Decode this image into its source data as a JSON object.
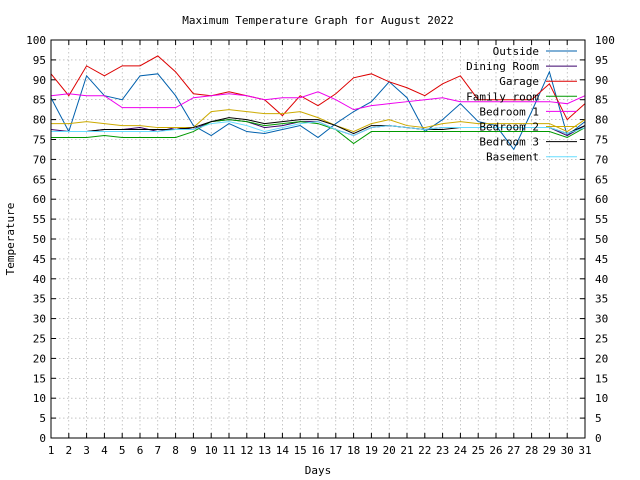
{
  "chart_data": {
    "type": "line",
    "title": "Maximum Temperature Graph for August 2022",
    "xlabel": "Days",
    "ylabel": "Temperature",
    "xlim": [
      1,
      31
    ],
    "ylim": [
      0,
      100
    ],
    "x_ticks": [
      1,
      2,
      3,
      4,
      5,
      6,
      7,
      8,
      9,
      10,
      11,
      12,
      13,
      14,
      15,
      16,
      17,
      18,
      19,
      20,
      21,
      22,
      23,
      24,
      25,
      26,
      27,
      28,
      29,
      30,
      31
    ],
    "y_ticks": [
      0,
      5,
      10,
      15,
      20,
      25,
      30,
      35,
      40,
      45,
      50,
      55,
      60,
      65,
      70,
      75,
      80,
      85,
      90,
      95,
      100
    ],
    "y_ticks_right": true,
    "grid": true,
    "legend_position": "top-right",
    "x": [
      1,
      2,
      3,
      4,
      5,
      6,
      7,
      8,
      9,
      10,
      11,
      12,
      13,
      14,
      15,
      16,
      17,
      18,
      19,
      20,
      21,
      22,
      23,
      24,
      25,
      26,
      27,
      28,
      29,
      30,
      31
    ],
    "series": [
      {
        "name": "Outside",
        "color": "#0060ad",
        "values": [
          85.5,
          77,
          91,
          86,
          85,
          91,
          91.5,
          86,
          78.5,
          76,
          79,
          77,
          76.5,
          77.5,
          78.5,
          75.5,
          79,
          82,
          84.5,
          89.5,
          85.5,
          77,
          80,
          84,
          79.5,
          78.5,
          72.5,
          82,
          92,
          76,
          79.5
        ]
      },
      {
        "name": "Dining Room",
        "color": "#3a006b",
        "values": [
          77.5,
          77,
          77,
          77.5,
          77.5,
          78,
          77,
          78,
          77.5,
          79.5,
          80,
          79.5,
          78,
          78.5,
          79.5,
          79.5,
          77.5,
          76,
          78,
          78.5,
          78,
          77.5,
          78,
          78,
          78,
          78,
          78,
          78,
          78,
          76,
          78.5
        ]
      },
      {
        "name": "Garage",
        "color": "#dd0000",
        "values": [
          91.5,
          86,
          93.5,
          91,
          93.5,
          93.5,
          96,
          92,
          86.5,
          86,
          87,
          86,
          85,
          81,
          86,
          83.5,
          86.5,
          90.5,
          91.5,
          89.5,
          88,
          86,
          89,
          91,
          85,
          85,
          85,
          85,
          89,
          80,
          84
        ]
      },
      {
        "name": "Family room",
        "color": "#009900",
        "values": [
          75.5,
          75.5,
          75.5,
          76,
          75.5,
          75.5,
          75.5,
          75.5,
          77,
          79.5,
          80,
          79.5,
          78.5,
          79,
          79.5,
          79,
          77.5,
          74,
          77,
          77,
          77,
          77,
          77,
          77,
          77,
          77,
          77,
          77,
          77,
          75.5,
          78
        ]
      },
      {
        "name": "Bedroom 1",
        "color": "#ee00ee",
        "values": [
          86,
          86.5,
          86,
          86,
          83,
          83,
          83,
          83,
          85.5,
          86,
          86.5,
          86,
          85,
          85.5,
          85.5,
          87,
          85,
          82.5,
          83.5,
          84,
          84.5,
          85,
          85.5,
          84.5,
          84.5,
          84.5,
          84.5,
          84.5,
          84.5,
          84,
          86
        ]
      },
      {
        "name": "Bedroom 2",
        "color": "#ccaa00",
        "values": [
          79,
          79,
          79.5,
          79,
          78.5,
          78.5,
          78,
          78,
          78,
          82,
          82.5,
          82,
          81.5,
          81.5,
          82,
          80.5,
          78.5,
          77,
          79,
          80,
          78.5,
          78,
          79,
          79.5,
          79,
          79,
          79,
          79,
          79,
          77,
          80
        ]
      },
      {
        "name": "Bedroom 3",
        "color": "#000000",
        "values": [
          77,
          77,
          77,
          77.5,
          77.5,
          77.5,
          77.5,
          77.5,
          78,
          79.5,
          80.5,
          80,
          79,
          79.5,
          80,
          80,
          78.5,
          76.5,
          78.5,
          78.5,
          78,
          77.5,
          77.5,
          78,
          78,
          78,
          78,
          78,
          78,
          76.5,
          78.5
        ]
      },
      {
        "name": "Basement",
        "color": "#66ddff",
        "values": [
          77,
          77,
          77,
          77,
          77,
          77,
          77,
          77.5,
          77.5,
          79,
          79.5,
          78.5,
          77,
          78,
          79,
          79.5,
          77.5,
          76,
          78,
          78.5,
          78,
          77.5,
          78,
          78,
          78,
          78,
          78,
          78,
          78,
          76.5,
          78
        ]
      }
    ]
  }
}
